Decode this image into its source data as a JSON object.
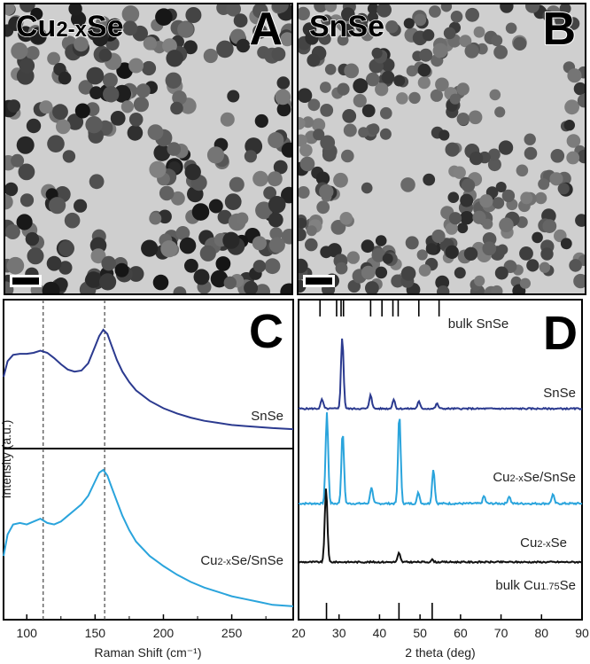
{
  "panels": {
    "a": {
      "letter": "A",
      "label_main": "Cu",
      "label_sub": "2-x",
      "label_end": "Se"
    },
    "b": {
      "letter": "B",
      "label": "SnSe"
    }
  },
  "chart_data": [
    {
      "type": "line",
      "panel": "C",
      "xlabel": "Raman Shift (cm⁻¹)",
      "ylabel": "Intensity (a.u.)",
      "xlim": [
        83,
        295
      ],
      "xticks": [
        100,
        150,
        200,
        250
      ],
      "reference_lines_x": [
        112,
        157
      ],
      "series": [
        {
          "name": "SnSe",
          "color": "#2b3a8f",
          "x": [
            83,
            86,
            90,
            95,
            100,
            105,
            110,
            115,
            120,
            125,
            130,
            135,
            140,
            145,
            150,
            153,
            156,
            159,
            162,
            166,
            170,
            175,
            180,
            190,
            200,
            210,
            220,
            230,
            240,
            250,
            260,
            270,
            280,
            295
          ],
          "y": [
            0.55,
            0.7,
            0.76,
            0.77,
            0.77,
            0.78,
            0.8,
            0.78,
            0.73,
            0.67,
            0.62,
            0.6,
            0.61,
            0.68,
            0.84,
            0.94,
            1.0,
            0.96,
            0.85,
            0.71,
            0.6,
            0.5,
            0.42,
            0.32,
            0.25,
            0.2,
            0.16,
            0.13,
            0.11,
            0.09,
            0.08,
            0.07,
            0.06,
            0.05
          ]
        },
        {
          "name": "Cu2-xSe/SnSe",
          "color": "#2aa4dc",
          "x": [
            83,
            86,
            90,
            95,
            100,
            105,
            110,
            115,
            120,
            125,
            130,
            135,
            140,
            145,
            150,
            153,
            156,
            159,
            162,
            166,
            170,
            175,
            180,
            190,
            200,
            210,
            220,
            230,
            240,
            250,
            260,
            270,
            280,
            295
          ],
          "y": [
            0.4,
            0.55,
            0.62,
            0.63,
            0.62,
            0.64,
            0.66,
            0.63,
            0.62,
            0.64,
            0.68,
            0.72,
            0.76,
            0.82,
            0.92,
            0.98,
            1.0,
            0.96,
            0.88,
            0.78,
            0.68,
            0.58,
            0.5,
            0.4,
            0.33,
            0.27,
            0.22,
            0.18,
            0.15,
            0.12,
            0.1,
            0.08,
            0.06,
            0.05
          ]
        }
      ]
    },
    {
      "type": "line",
      "panel": "D",
      "xlabel": "2 theta (deg)",
      "xlim": [
        20,
        90
      ],
      "xticks": [
        20,
        30,
        40,
        50,
        60,
        70,
        80,
        90
      ],
      "reference_patterns": [
        {
          "name": "bulk SnSe",
          "position": "top",
          "peaks": [
            25.3,
            29.4,
            30.5,
            31.1,
            37.8,
            40.6,
            43.3,
            44.6,
            49.7,
            54.7
          ]
        },
        {
          "name": "bulk Cu1.75Se",
          "position": "bottom",
          "peaks": [
            26.9,
            44.8,
            53.0
          ]
        }
      ],
      "series": [
        {
          "name": "SnSe",
          "color": "#2b3a8f",
          "peaks": [
            {
              "x": 25.8,
              "h": 0.13
            },
            {
              "x": 30.8,
              "h": 1.0
            },
            {
              "x": 37.8,
              "h": 0.2
            },
            {
              "x": 43.5,
              "h": 0.13
            },
            {
              "x": 49.7,
              "h": 0.1
            },
            {
              "x": 54.2,
              "h": 0.07
            }
          ]
        },
        {
          "name": "Cu2-xSe/SnSe",
          "color": "#2aa4dc",
          "peaks": [
            {
              "x": 27.0,
              "h": 1.0
            },
            {
              "x": 30.9,
              "h": 0.78
            },
            {
              "x": 38.0,
              "h": 0.18
            },
            {
              "x": 44.9,
              "h": 0.98
            },
            {
              "x": 49.6,
              "h": 0.12
            },
            {
              "x": 53.3,
              "h": 0.38
            },
            {
              "x": 65.8,
              "h": 0.08
            },
            {
              "x": 72.0,
              "h": 0.08
            },
            {
              "x": 82.8,
              "h": 0.1
            }
          ]
        },
        {
          "name": "Cu2-xSe",
          "color": "#111111",
          "peaks": [
            {
              "x": 26.8,
              "h": 1.0
            },
            {
              "x": 44.8,
              "h": 0.12
            },
            {
              "x": 53.0,
              "h": 0.03
            }
          ]
        }
      ]
    }
  ],
  "labels": {
    "c_letter": "C",
    "d_letter": "D",
    "c_snse": "SnSe",
    "c_mix_main": "Cu",
    "c_mix_sub": "2-x",
    "c_mix_end": "Se/SnSe",
    "d_bulk_snse": "bulk SnSe",
    "d_snse": "SnSe",
    "d_mix_main": "Cu",
    "d_mix_sub": "2-x",
    "d_mix_end": "Se/SnSe",
    "d_cu_main": "Cu",
    "d_cu_sub": "2-x",
    "d_cu_end": "Se",
    "d_bulk_cu_main": "bulk Cu",
    "d_bulk_cu_sub": "1.75",
    "d_bulk_cu_end": "Se",
    "c_ylabel": "Intensity (a.u.)",
    "c_xlabel": "Raman Shift (cm⁻¹)",
    "d_xlabel": "2 theta (deg)"
  },
  "colors": {
    "snse": "#2b3a8f",
    "mix": "#2aa4dc",
    "cu": "#111111",
    "tem_bg": "#cfcfcf"
  }
}
